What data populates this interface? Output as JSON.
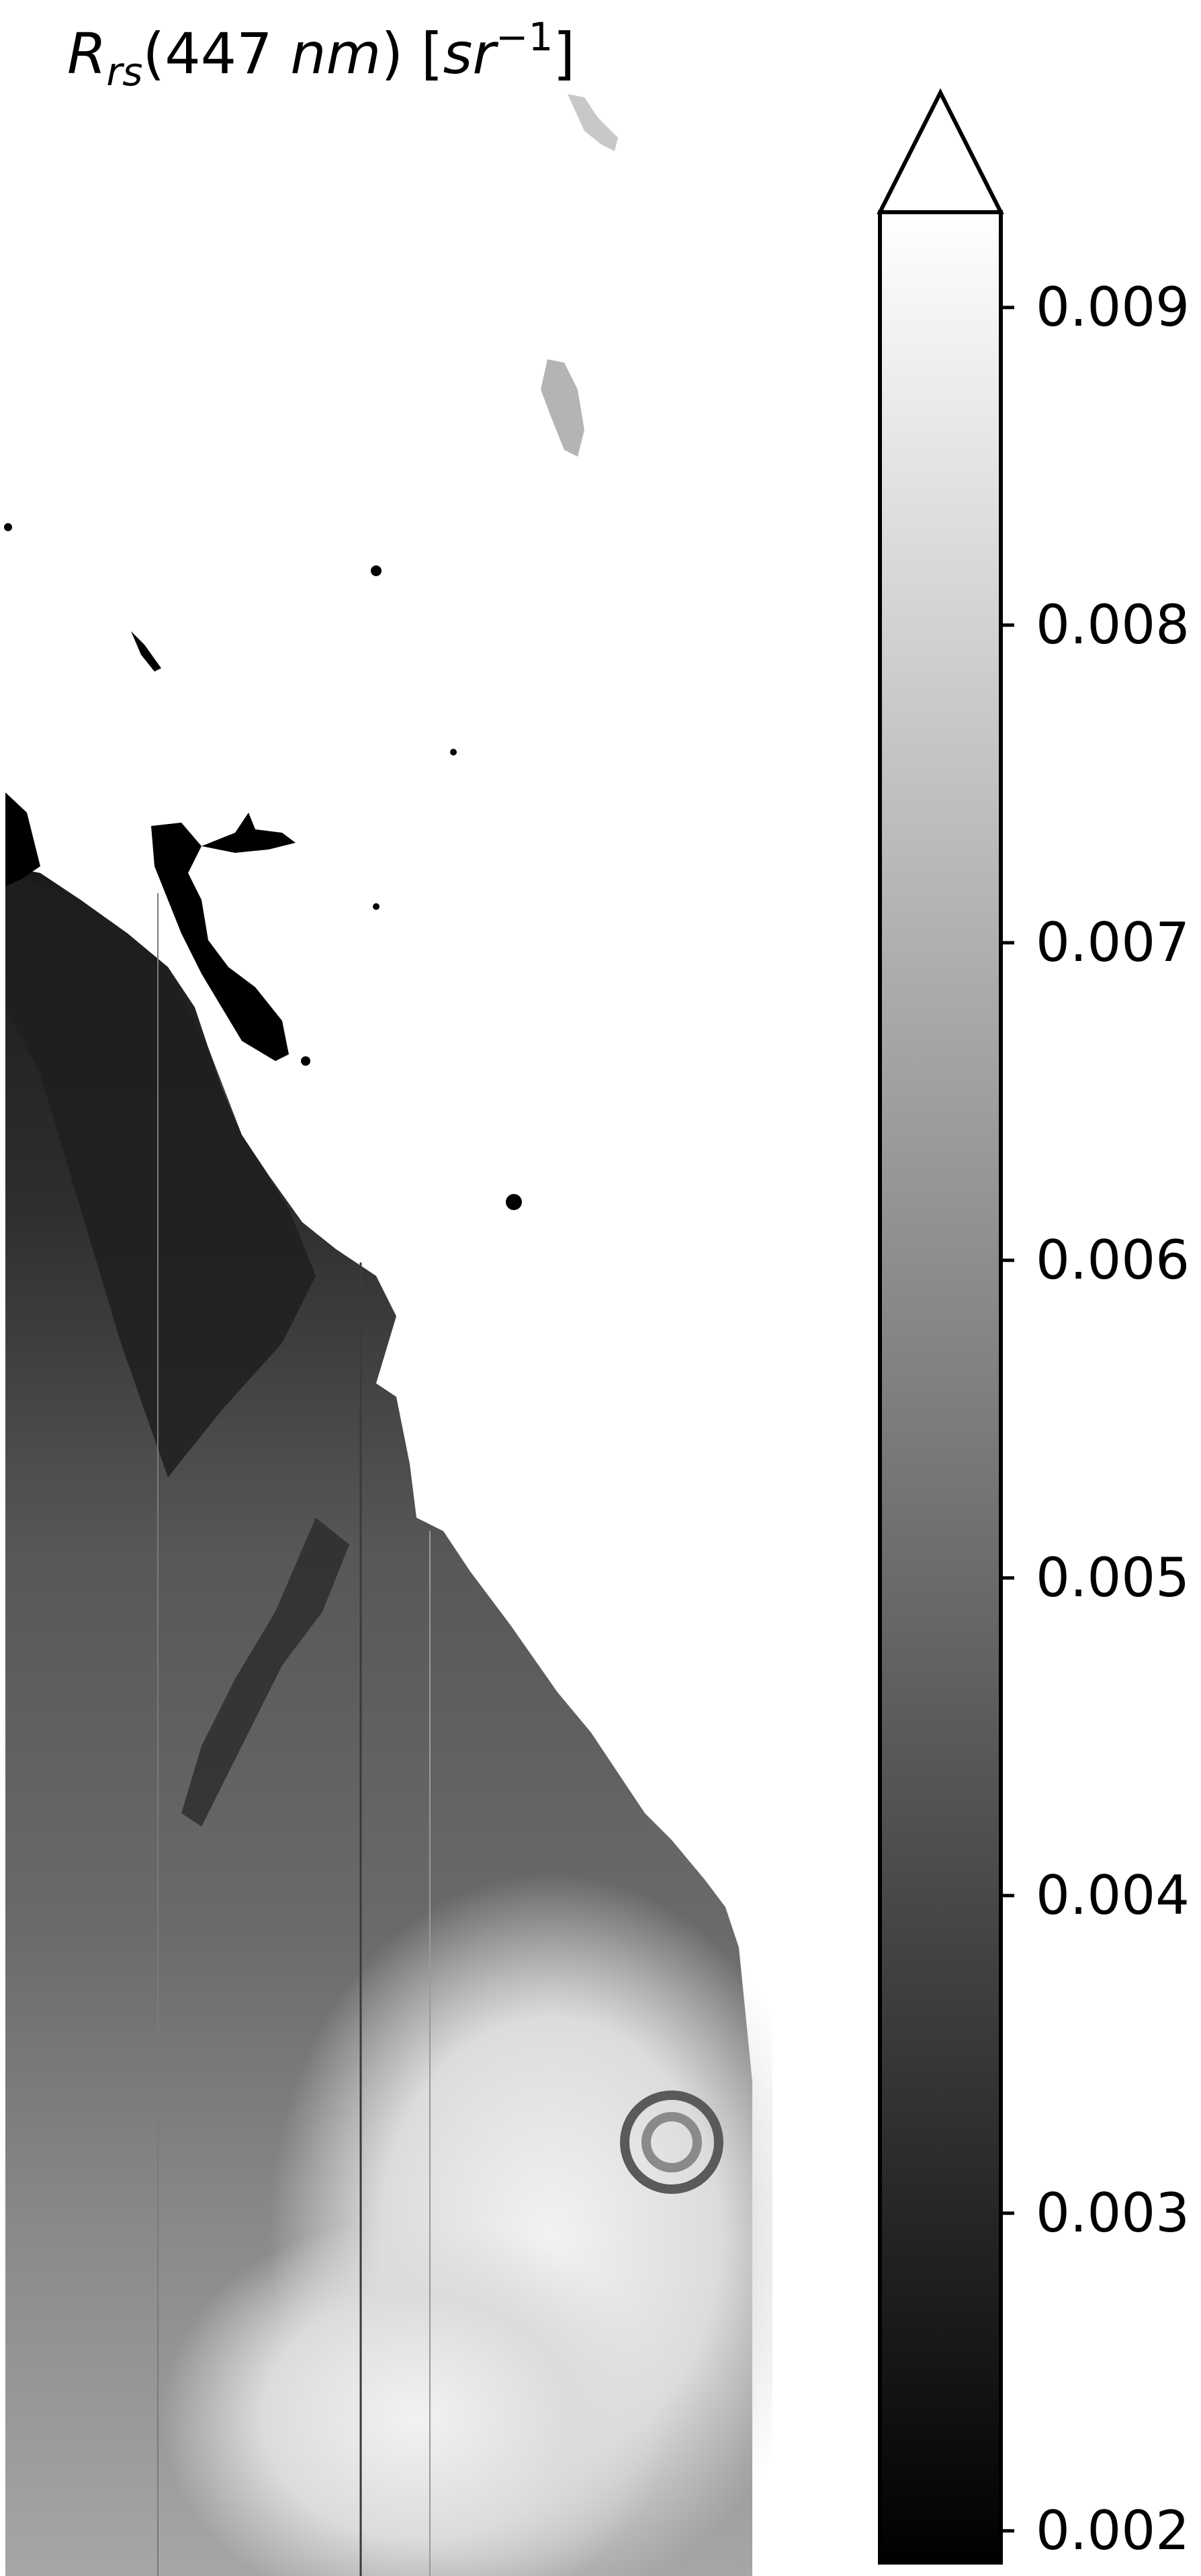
{
  "title": {
    "prefix": "R",
    "subscript": "rs",
    "open_paren": "(447 ",
    "unit_nm": "nm",
    "close_mid": ") [",
    "unit_sr": "sr",
    "superscript": "−1",
    "close": "]"
  },
  "colorbar": {
    "colormap": "grayscale",
    "min": 0.0019,
    "max": 0.0093,
    "extend": "max",
    "ticks": [
      {
        "value": 0.009,
        "label": "0.009"
      },
      {
        "value": 0.008,
        "label": "0.008"
      },
      {
        "value": 0.007,
        "label": "0.007"
      },
      {
        "value": 0.006,
        "label": "0.006"
      },
      {
        "value": 0.005,
        "label": "0.005"
      },
      {
        "value": 0.004,
        "label": "0.004"
      },
      {
        "value": 0.003,
        "label": "0.003"
      },
      {
        "value": 0.002,
        "label": "0.002"
      }
    ]
  },
  "map": {
    "background_color": "#ffffff",
    "land_color": "#000000",
    "low_reflectance_color": "#2a2a2a",
    "mid_reflectance_color": "#6e6e6e",
    "high_reflectance_color": "#e6e6e6"
  }
}
